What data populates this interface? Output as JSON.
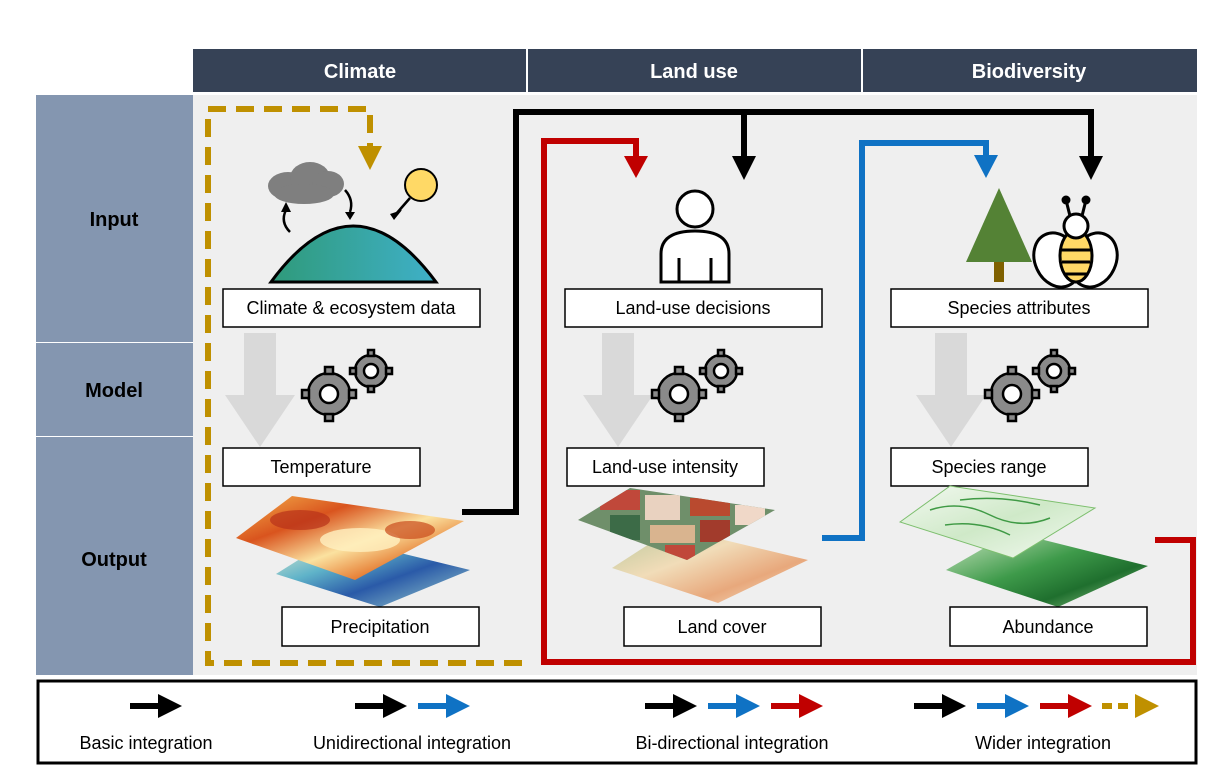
{
  "columns": {
    "climate": "Climate",
    "land_use": "Land use",
    "biodiversity": "Biodiversity"
  },
  "rows": {
    "input": "Input",
    "model": "Model",
    "output": "Output"
  },
  "climate": {
    "input_label": "Climate & ecosystem data",
    "output_label_1": "Temperature",
    "output_label_2": "Precipitation"
  },
  "land_use": {
    "input_label": "Land-use decisions",
    "output_label_1": "Land-use intensity",
    "output_label_2": "Land cover"
  },
  "biodiversity": {
    "input_label": "Species attributes",
    "output_label_1": "Species range",
    "output_label_2": "Abundance"
  },
  "legend": {
    "basic": "Basic integration",
    "unidirectional": "Unidirectional integration",
    "bidirectional": "Bi-directional integration",
    "wider": "Wider integration"
  },
  "colors": {
    "header_bg": "#364256",
    "row_header_bg": "#8496b0",
    "panel_bg": "#efefef",
    "basic_arrow": "#000000",
    "unidirectional_arrow": "#0f72c4",
    "bidirectional_arrow": "#c00000",
    "wider_arrow": "#bf9000"
  }
}
